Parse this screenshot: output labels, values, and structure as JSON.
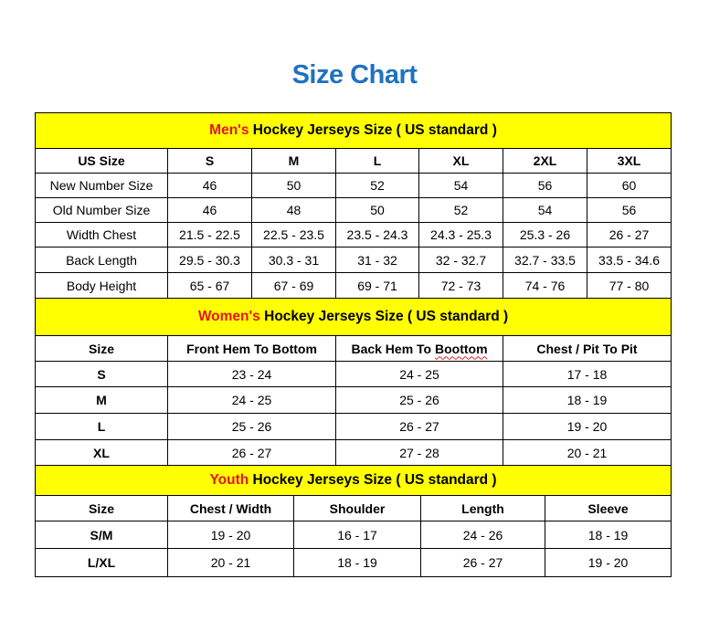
{
  "title": "Size Chart",
  "colors": {
    "title": "#1f72bf",
    "band": "#ffff00",
    "highlight": "#e8141a"
  },
  "men": {
    "band_highlight": "Men's",
    "band_rest": " Hockey Jerseys Size ( US standard )",
    "headers": [
      "US Size",
      "S",
      "M",
      "L",
      "XL",
      "2XL",
      "3XL"
    ],
    "rows": [
      [
        "New Number Size",
        "46",
        "50",
        "52",
        "54",
        "56",
        "60"
      ],
      [
        "Old Number Size",
        "46",
        "48",
        "50",
        "52",
        "54",
        "56"
      ],
      [
        "Width Chest",
        "21.5 - 22.5",
        "22.5 - 23.5",
        "23.5 - 24.3",
        "24.3 - 25.3",
        "25.3 - 26",
        "26 - 27"
      ],
      [
        "Back Length",
        "29.5 - 30.3",
        "30.3 - 31",
        "31 - 32",
        "32 - 32.7",
        "32.7 - 33.5",
        "33.5 - 34.6"
      ],
      [
        "Body Height",
        "65 - 67",
        "67 - 69",
        "69 - 71",
        "72 - 73",
        "74 - 76",
        "77 - 80"
      ]
    ]
  },
  "women": {
    "band_highlight": "Women's",
    "band_rest": " Hockey Jerseys Size ( US standard )",
    "headers": [
      "Size",
      "Front Hem To Bottom",
      "Back Hem To ",
      "Chest / Pit To Pit"
    ],
    "header_misspelled_word": "Boottom",
    "rows": [
      [
        "S",
        "23 - 24",
        "24 - 25",
        "17 - 18"
      ],
      [
        "M",
        "24 - 25",
        "25 - 26",
        "18 - 19"
      ],
      [
        "L",
        "25 - 26",
        "26 - 27",
        "19 - 20"
      ],
      [
        "XL",
        "26 - 27",
        "27 - 28",
        "20 - 21"
      ]
    ]
  },
  "youth": {
    "band_highlight": "Youth",
    "band_rest": " Hockey Jerseys Size ( US standard )",
    "headers": [
      "Size",
      "Chest / Width",
      "Shoulder",
      "Length",
      "Sleeve"
    ],
    "rows": [
      [
        "S/M",
        "19 - 20",
        "16 - 17",
        "24 - 26",
        "18 - 19"
      ],
      [
        "L/XL",
        "20 - 21",
        "18 - 19",
        "26 - 27",
        "19 - 20"
      ]
    ]
  }
}
